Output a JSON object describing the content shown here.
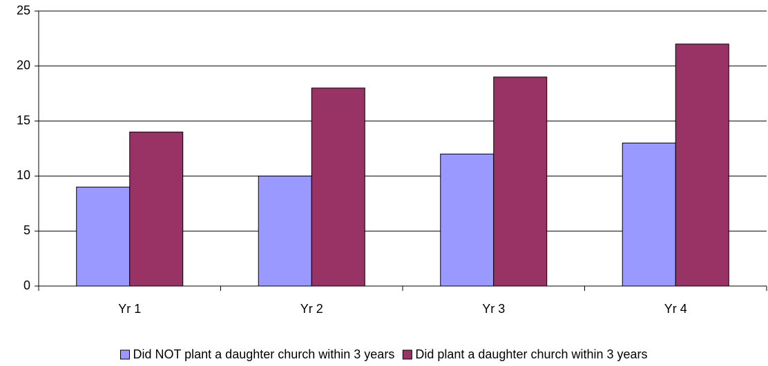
{
  "chart_data": {
    "type": "bar",
    "categories": [
      "Yr 1",
      "Yr 2",
      "Yr 3",
      "Yr 4"
    ],
    "series": [
      {
        "name": "Did NOT plant a daughter church within 3 years",
        "color": "#9999ff",
        "values": [
          9,
          10,
          12,
          13
        ]
      },
      {
        "name": "Did plant a daughter church within 3 years",
        "color": "#993366",
        "values": [
          14,
          18,
          19,
          22
        ]
      }
    ],
    "ylim": [
      0,
      25
    ],
    "yticks": [
      0,
      5,
      10,
      15,
      20,
      25
    ],
    "grid": true,
    "legend": "bottom"
  }
}
